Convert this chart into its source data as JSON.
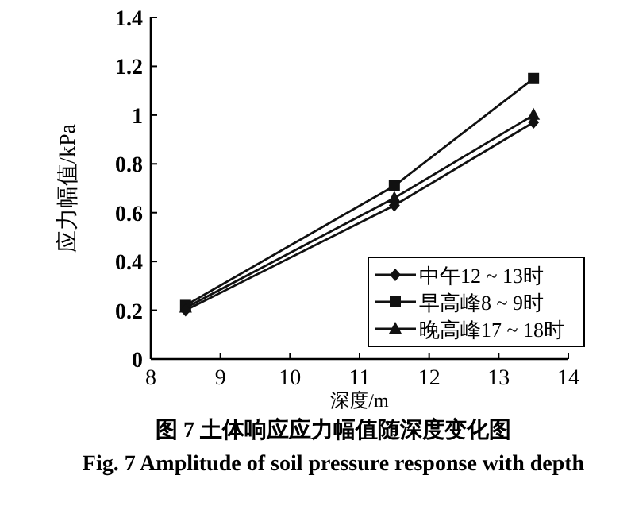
{
  "chart_data": {
    "type": "line",
    "title": "图 7   土体响应应力幅值随深度变化图",
    "subtitle": "Fig. 7   Amplitude of soil pressure response with depth",
    "xlabel": "深度/m",
    "ylabel": "应力幅值/kPa",
    "x": [
      8.5,
      11.5,
      13.5
    ],
    "series": [
      {
        "name": "中午12 ~ 13时",
        "color": "#111111",
        "marker": "diamond",
        "values": [
          0.2,
          0.63,
          0.97
        ]
      },
      {
        "name": "早高峰8 ~ 9时",
        "color": "#111111",
        "marker": "square",
        "values": [
          0.22,
          0.71,
          1.15
        ]
      },
      {
        "name": "晚高峰17 ~ 18时",
        "color": "#111111",
        "marker": "triangle",
        "values": [
          0.21,
          0.66,
          1.0
        ]
      }
    ],
    "xlim": [
      8,
      14
    ],
    "xticks": [
      8,
      9,
      10,
      11,
      12,
      13,
      14
    ],
    "ylim": [
      0,
      1.4
    ],
    "yticks": [
      0,
      0.2,
      0.4,
      0.6,
      0.8,
      1,
      1.2,
      1.4
    ],
    "grid": false,
    "legend": "bottom right",
    "line_style": "solid"
  }
}
